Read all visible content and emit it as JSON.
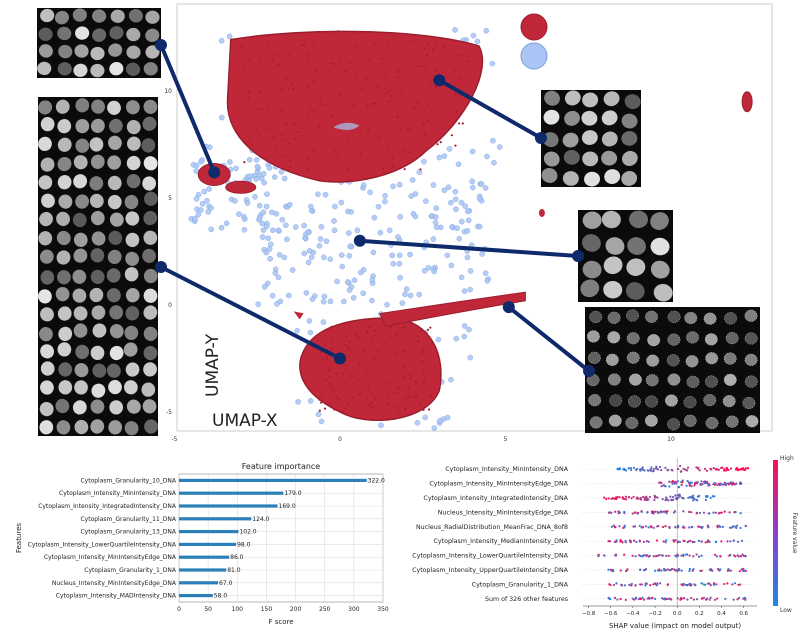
{
  "chart_data": [
    {
      "type": "scatter",
      "xlabel": "UMAP-X",
      "ylabel": "UMAP-Y",
      "x_ticks": [
        -5,
        0,
        5,
        10
      ],
      "y_ticks": [
        -5,
        0,
        5,
        10
      ],
      "xlim": [
        -5,
        13
      ],
      "ylim": [
        -6,
        13
      ],
      "grid": false,
      "legend": "top-right",
      "series": [
        {
          "color": "#c0283a",
          "role": "dense clusters"
        },
        {
          "color": "#a9c4f5",
          "role": "sparse points"
        }
      ],
      "clusters": [
        {
          "region": "top",
          "x_range": [
            -3.4,
            4.5
          ],
          "y_range": [
            5.5,
            12.8
          ]
        },
        {
          "region": "bottom",
          "x_range": [
            -1.2,
            3.2
          ],
          "y_range": [
            -5.5,
            -0.5
          ]
        },
        {
          "region": "left-small",
          "x_range": [
            -4.3,
            -2.6
          ],
          "y_range": [
            5.2,
            6.4
          ]
        },
        {
          "region": "far-right",
          "x_range": [
            12.1,
            12.5
          ],
          "y_range": [
            9.2,
            9.9
          ]
        }
      ],
      "insets": [
        {
          "name": "top-left-cells",
          "pointer_x": -3.8,
          "pointer_y": 6.2
        },
        {
          "name": "left-tall-cells",
          "pointer_x": 0.0,
          "pointer_y": -2.5
        },
        {
          "name": "top-right-cells",
          "pointer_x": 3.0,
          "pointer_y": 10.5
        },
        {
          "name": "middle-right-cells",
          "pointer_x": 0.6,
          "pointer_y": 3.0
        },
        {
          "name": "bottom-right-cells",
          "pointer_x": 5.1,
          "pointer_y": -0.1
        }
      ]
    },
    {
      "type": "bar",
      "orientation": "horizontal",
      "title": "Feature importance",
      "xlabel": "F score",
      "ylabel": "Features",
      "xlim": [
        0,
        350
      ],
      "x_ticks": [
        0,
        50,
        100,
        150,
        200,
        250,
        300,
        350
      ],
      "grid": true,
      "categories": [
        "Cytoplasm_Granularity_10_DNA",
        "Cytoplasm_Intensity_MinIntensity_DNA",
        "Cytoplasm_Intensity_IntegratedIntensity_DNA",
        "Cytoplasm_Granularity_11_DNA",
        "Cytoplasm_Granularity_13_DNA",
        "Cytoplasm_Intensity_LowerQuartileIntensity_DNA",
        "Cytoplasm_Intensity_MinIntensityEdge_DNA",
        "Cytoplasm_Granularity_1_DNA",
        "Nucleus_Intensity_MinIntensityEdge_DNA",
        "Cytoplasm_Intensity_MADIntensity_DNA"
      ],
      "values": [
        322,
        179,
        169,
        124,
        102,
        98,
        86,
        81,
        67,
        58
      ],
      "value_labels": [
        "322.0",
        "179.0",
        "169.0",
        "124.0",
        "102.0",
        "98.0",
        "86.0",
        "81.0",
        "67.0",
        "58.0"
      ]
    },
    {
      "type": "scatter",
      "subtype": "beeswarm",
      "xlabel": "SHAP value (impact on model output)",
      "xlim": [
        -0.85,
        0.72
      ],
      "x_ticks": [
        -0.8,
        -0.6,
        -0.4,
        -0.2,
        0.0,
        0.2,
        0.4,
        0.6
      ],
      "x_tick_labels": [
        "−0.8",
        "−0.6",
        "−0.4",
        "−0.2",
        "0.0",
        "0.2",
        "0.4",
        "0.6"
      ],
      "colorbar": {
        "label": "Feature value",
        "high": "High",
        "low": "Low",
        "low_color": "#1e88e5",
        "high_color": "#ff0d57"
      },
      "features": [
        {
          "name": "Cytoplasm_Intensity_MinIntensity_DNA",
          "range": [
            -0.55,
            0.68
          ]
        },
        {
          "name": "Cytoplasm_Intensity_MinIntensityEdge_DNA",
          "range": [
            -0.18,
            0.58
          ]
        },
        {
          "name": "Cytoplasm_Intensity_IntegratedIntensity_DNA",
          "range": [
            -0.66,
            0.36
          ]
        },
        {
          "name": "Nucleus_Intensity_MinIntensityEdge_DNA",
          "range": [
            -0.62,
            0.6
          ]
        },
        {
          "name": "Nucleus_RadialDistribution_MeanFrac_DNA_8of8",
          "range": [
            -0.62,
            0.62
          ]
        },
        {
          "name": "Cytoplasm_Intensity_MedianIntensity_DNA",
          "range": [
            -0.62,
            0.62
          ]
        },
        {
          "name": "Cytoplasm_Intensity_LowerQuartileIntensity_DNA",
          "range": [
            -0.78,
            0.62
          ]
        },
        {
          "name": "Cytoplasm_Intensity_UpperQuartileIntensity_DNA",
          "range": [
            -0.62,
            0.62
          ]
        },
        {
          "name": "Cytoplasm_Granularity_1_DNA",
          "range": [
            -0.62,
            0.62
          ]
        },
        {
          "name": "Sum of 326 other features",
          "range": [
            -0.62,
            0.62
          ]
        }
      ]
    }
  ]
}
